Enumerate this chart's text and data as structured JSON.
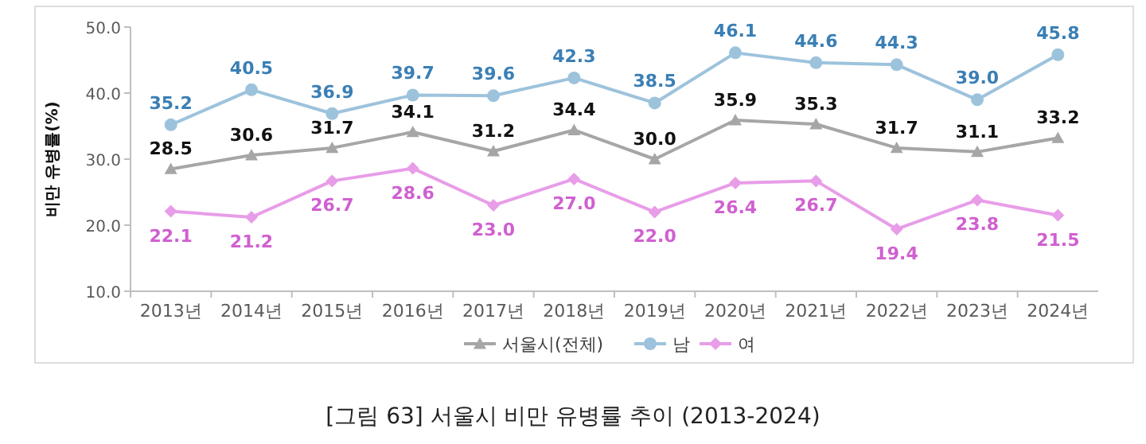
{
  "chart_data": {
    "type": "line",
    "title": "[그림 63] 서울시 비만 유병률 추이 (2013-2024)",
    "ylabel": "비만 유병률(%)",
    "categories": [
      "2013년",
      "2014년",
      "2015년",
      "2016년",
      "2017년",
      "2018년",
      "2019년",
      "2020년",
      "2021년",
      "2022년",
      "2023년",
      "2024년"
    ],
    "ylim": [
      10,
      50
    ],
    "yticks": [
      {
        "value": 10,
        "label": "10.0"
      },
      {
        "value": 20,
        "label": "20.0"
      },
      {
        "value": 30,
        "label": "30.0"
      },
      {
        "value": 40,
        "label": "40.0"
      },
      {
        "value": 50,
        "label": "50.0"
      }
    ],
    "grid": false,
    "legend": "bottom",
    "data_labels": true,
    "line_style": "solid",
    "series": [
      {
        "name": "서울시(전체)",
        "color": "#a6a6a6",
        "marker": "triangle",
        "values": [
          28.5,
          30.6,
          31.7,
          34.1,
          31.2,
          34.4,
          30.0,
          35.9,
          35.3,
          31.7,
          31.1,
          33.2
        ],
        "value_labels": [
          "28.5",
          "30.6",
          "31.7",
          "34.1",
          "31.2",
          "34.4",
          "30.0",
          "35.9",
          "35.3",
          "31.7",
          "31.1",
          "33.2"
        ]
      },
      {
        "name": "남",
        "color": "#9dc3dc",
        "marker": "circle",
        "values": [
          35.2,
          40.5,
          36.9,
          39.7,
          39.6,
          42.3,
          38.5,
          46.1,
          44.6,
          44.3,
          39.0,
          45.8
        ],
        "value_labels": [
          "35.2",
          "40.5",
          "36.9",
          "39.7",
          "39.6",
          "42.3",
          "38.5",
          "46.1",
          "44.6",
          "44.3",
          "39.0",
          "45.8"
        ]
      },
      {
        "name": "여",
        "color": "#e89de8",
        "marker": "diamond",
        "values": [
          22.1,
          21.2,
          26.7,
          28.6,
          23.0,
          27.0,
          22.0,
          26.4,
          26.7,
          19.4,
          23.8,
          21.5
        ],
        "value_labels": [
          "22.1",
          "21.2",
          "26.7",
          "28.6",
          "23.0",
          "27.0",
          "22.0",
          "26.4",
          "26.7",
          "19.4",
          "23.8",
          "21.5"
        ]
      }
    ]
  }
}
